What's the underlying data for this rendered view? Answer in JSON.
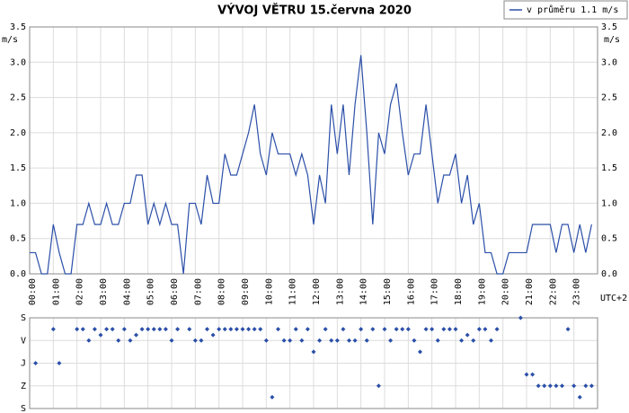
{
  "chart_data": [
    {
      "type": "line",
      "title": "VÝVOJ VĚTRU  15.června 2020",
      "y_unit": "m/s",
      "note": "UTC+2",
      "grid": true,
      "legend": "top-right",
      "xlim": [
        0,
        24
      ],
      "xticks": [
        {
          "value": 0,
          "label": "00:00"
        },
        {
          "value": 1,
          "label": "01:00"
        },
        {
          "value": 2,
          "label": "02:00"
        },
        {
          "value": 3,
          "label": "03:00"
        },
        {
          "value": 4,
          "label": "04:00"
        },
        {
          "value": 5,
          "label": "05:00"
        },
        {
          "value": 6,
          "label": "06:00"
        },
        {
          "value": 7,
          "label": "07:00"
        },
        {
          "value": 8,
          "label": "08:00"
        },
        {
          "value": 9,
          "label": "09:00"
        },
        {
          "value": 10,
          "label": "10:00"
        },
        {
          "value": 11,
          "label": "11:00"
        },
        {
          "value": 12,
          "label": "12:00"
        },
        {
          "value": 13,
          "label": "13:00"
        },
        {
          "value": 14,
          "label": "14:00"
        },
        {
          "value": 15,
          "label": "15:00"
        },
        {
          "value": 16,
          "label": "16:00"
        },
        {
          "value": 17,
          "label": "17:00"
        },
        {
          "value": 18,
          "label": "18:00"
        },
        {
          "value": 19,
          "label": "19:00"
        },
        {
          "value": 20,
          "label": "20:00"
        },
        {
          "value": 21,
          "label": "21:00"
        },
        {
          "value": 22,
          "label": "22:00"
        },
        {
          "value": 23,
          "label": "23:00"
        }
      ],
      "ylim": [
        0,
        3.5
      ],
      "yticks": [
        {
          "value": 0,
          "label": "0.0"
        },
        {
          "value": 0.5,
          "label": "0.5"
        },
        {
          "value": 1,
          "label": "1.0"
        },
        {
          "value": 1.5,
          "label": "1.5"
        },
        {
          "value": 2,
          "label": "2.0"
        },
        {
          "value": 2.5,
          "label": "2.5"
        },
        {
          "value": 3,
          "label": "3.0"
        },
        {
          "value": 3.5,
          "label": "3.5"
        }
      ],
      "x": [
        0,
        0.25,
        0.5,
        0.75,
        1,
        1.25,
        1.5,
        1.75,
        2,
        2.25,
        2.5,
        2.75,
        3,
        3.25,
        3.5,
        3.75,
        4,
        4.25,
        4.5,
        4.75,
        5,
        5.25,
        5.5,
        5.75,
        6,
        6.25,
        6.5,
        6.75,
        7,
        7.25,
        7.5,
        7.75,
        8,
        8.25,
        8.5,
        8.75,
        9,
        9.25,
        9.5,
        9.75,
        10,
        10.25,
        10.5,
        10.75,
        11,
        11.25,
        11.5,
        11.75,
        12,
        12.25,
        12.5,
        12.75,
        13,
        13.25,
        13.5,
        13.75,
        14,
        14.25,
        14.5,
        14.75,
        15,
        15.25,
        15.5,
        15.75,
        16,
        16.25,
        16.5,
        16.75,
        17,
        17.25,
        17.5,
        17.75,
        18,
        18.25,
        18.5,
        18.75,
        19,
        19.25,
        19.5,
        19.75,
        20,
        20.25,
        20.5,
        20.75,
        21,
        21.25,
        21.5,
        21.75,
        22,
        22.25,
        22.5,
        22.75,
        23,
        23.25,
        23.5,
        23.75
      ],
      "series": [
        {
          "name": "v průměru 1.1 m/s",
          "color": "#2b4fa8",
          "values": [
            0.3,
            0.3,
            0.0,
            0.0,
            0.7,
            0.3,
            0.0,
            0.0,
            0.7,
            0.7,
            1.0,
            0.7,
            0.7,
            1.0,
            0.7,
            0.7,
            1.0,
            1.0,
            1.4,
            1.4,
            0.7,
            1.0,
            0.7,
            1.0,
            0.7,
            0.7,
            0.0,
            1.0,
            1.0,
            0.7,
            1.4,
            1.0,
            1.0,
            1.7,
            1.4,
            1.4,
            1.7,
            2.0,
            2.4,
            1.7,
            1.4,
            2.0,
            1.7,
            1.7,
            1.7,
            1.4,
            1.7,
            1.4,
            0.7,
            1.4,
            1.0,
            2.4,
            1.7,
            2.4,
            1.4,
            2.4,
            3.1,
            2.0,
            0.7,
            2.0,
            1.7,
            2.4,
            2.7,
            2.0,
            1.4,
            1.7,
            1.7,
            2.4,
            1.7,
            1.0,
            1.4,
            1.4,
            1.7,
            1.0,
            1.4,
            0.7,
            1.0,
            0.3,
            0.3,
            0.0,
            0.0,
            0.3,
            0.3,
            0.3,
            0.3,
            0.7,
            0.7,
            0.7,
            0.7,
            0.3,
            0.7,
            0.7,
            0.3,
            0.7,
            0.3,
            0.7
          ]
        }
      ]
    },
    {
      "type": "scatter",
      "color": "#2b4fa8",
      "grid": true,
      "xlim": [
        0,
        24
      ],
      "ylim": [
        360,
        0
      ],
      "yticks": [
        {
          "value": 0,
          "label": "S"
        },
        {
          "value": 90,
          "label": "V"
        },
        {
          "value": 180,
          "label": "J"
        },
        {
          "value": 270,
          "label": "Z"
        },
        {
          "value": 360,
          "label": "S"
        }
      ],
      "x": [
        0,
        0.25,
        0.5,
        0.75,
        1,
        1.25,
        1.5,
        1.75,
        2,
        2.25,
        2.5,
        2.75,
        3,
        3.25,
        3.5,
        3.75,
        4,
        4.25,
        4.5,
        4.75,
        5,
        5.25,
        5.5,
        5.75,
        6,
        6.25,
        6.5,
        6.75,
        7,
        7.25,
        7.5,
        7.75,
        8,
        8.25,
        8.5,
        8.75,
        9,
        9.25,
        9.5,
        9.75,
        10,
        10.25,
        10.5,
        10.75,
        11,
        11.25,
        11.5,
        11.75,
        12,
        12.25,
        12.5,
        12.75,
        13,
        13.25,
        13.5,
        13.75,
        14,
        14.25,
        14.5,
        14.75,
        15,
        15.25,
        15.5,
        15.75,
        16,
        16.25,
        16.5,
        16.75,
        17,
        17.25,
        17.5,
        17.75,
        18,
        18.25,
        18.5,
        18.75,
        19,
        19.25,
        19.5,
        19.75,
        20,
        20.25,
        20.5,
        20.75,
        21,
        21.25,
        21.5,
        21.75,
        22,
        22.25,
        22.5,
        22.75,
        23,
        23.25,
        23.5,
        23.75
      ],
      "values": [
        null,
        180,
        null,
        null,
        45,
        180,
        null,
        null,
        45,
        45,
        90,
        45,
        68,
        45,
        45,
        90,
        45,
        90,
        68,
        45,
        45,
        45,
        45,
        45,
        90,
        45,
        null,
        45,
        90,
        90,
        45,
        68,
        45,
        45,
        45,
        45,
        45,
        45,
        45,
        45,
        90,
        315,
        45,
        90,
        90,
        45,
        90,
        45,
        135,
        90,
        45,
        90,
        90,
        45,
        90,
        90,
        45,
        90,
        45,
        270,
        45,
        90,
        45,
        45,
        45,
        90,
        135,
        45,
        45,
        90,
        45,
        45,
        45,
        90,
        68,
        90,
        45,
        45,
        90,
        45,
        null,
        null,
        null,
        0,
        225,
        225,
        270,
        270,
        270,
        270,
        270,
        45,
        270,
        315,
        270,
        270
      ]
    }
  ]
}
